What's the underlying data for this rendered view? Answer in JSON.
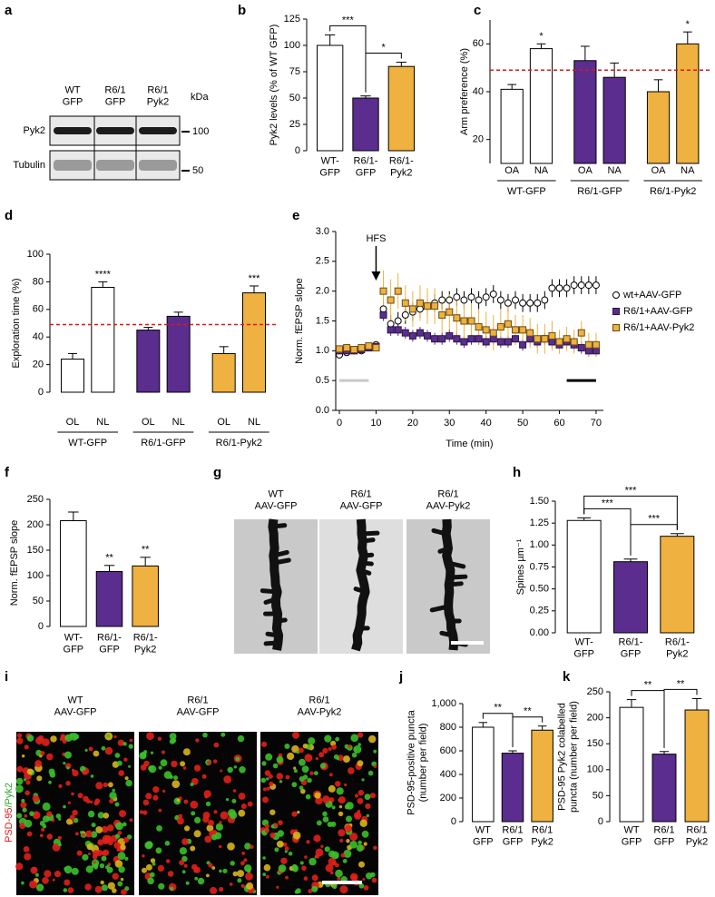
{
  "images": [
    {
      "panel": "a",
      "lane_labels": [
        "WT\nGFP",
        "R6/1\nGFP",
        "R6/1\nPyk2"
      ],
      "unit": "kDa",
      "row_labels": [
        "Pyk2",
        "Tubulin"
      ],
      "markers": [
        100,
        50
      ]
    },
    {
      "panel": "g",
      "labels": [
        "WT\nAAV-GFP",
        "R6/1\nAAV-GFP",
        "R6/1\nAAV-Pyk2"
      ]
    },
    {
      "panel": "i",
      "labels": [
        "WT\nAAV-GFP",
        "R6/1\nAAV-GFP",
        "R6/1\nAAV-Pyk2"
      ],
      "channels": [
        {
          "text": "PSD-95",
          "color": "#e0201b"
        },
        {
          "text": "/Pyk2",
          "color": "#2fa82f"
        }
      ]
    }
  ],
  "chart_data": [
    {
      "type": "bar",
      "panel": "b",
      "ylabel": "Pyk2 levels (% of WT GFP)",
      "categories": [
        "WT-\nGFP",
        "R6/1-\nGFP",
        "R6/1-\nPyk2"
      ],
      "values": [
        100,
        50,
        80
      ],
      "errors": [
        10,
        2,
        4
      ],
      "colors": [
        "#ffffff",
        "#5b2d8e",
        "#efb13f"
      ],
      "ylim": [
        0,
        125
      ],
      "yticks": [
        0,
        25,
        50,
        75,
        100,
        125
      ],
      "annotations": [
        {
          "text": "***",
          "from": 0,
          "to": 1
        },
        {
          "text": "*",
          "from": 1,
          "to": 2
        }
      ]
    },
    {
      "type": "grouped_bar",
      "panel": "c",
      "ylabel": "Arm preference (%)",
      "groups": [
        {
          "name": "WT-GFP",
          "color": "#ffffff",
          "categories": [
            "OA",
            "NA"
          ],
          "values": [
            41,
            58
          ],
          "errors": [
            2,
            2
          ]
        },
        {
          "name": "R6/1-GFP",
          "color": "#5b2d8e",
          "categories": [
            "OA",
            "NA"
          ],
          "values": [
            53,
            46
          ],
          "errors": [
            6,
            6
          ]
        },
        {
          "name": "R6/1-Pyk2",
          "color": "#efb13f",
          "categories": [
            "OA",
            "NA"
          ],
          "values": [
            40,
            60
          ],
          "errors": [
            5,
            5
          ]
        }
      ],
      "reference_line": 49,
      "reference_color": "#d7191c",
      "ylim": [
        10,
        70
      ],
      "yticks": [
        20,
        40,
        60
      ],
      "annotations": [
        {
          "group": 0,
          "index": 1,
          "text": "*"
        },
        {
          "group": 2,
          "index": 1,
          "text": "*"
        }
      ]
    },
    {
      "type": "grouped_bar",
      "panel": "d",
      "ylabel": "Exploration time (%)",
      "groups": [
        {
          "name": "WT-GFP",
          "color": "#ffffff",
          "categories": [
            "OL",
            "NL"
          ],
          "values": [
            24,
            76
          ],
          "errors": [
            4,
            4
          ]
        },
        {
          "name": "R6/1-GFP",
          "color": "#5b2d8e",
          "categories": [
            "OL",
            "NL"
          ],
          "values": [
            45,
            55
          ],
          "errors": [
            2,
            3
          ]
        },
        {
          "name": "R6/1-Pyk2",
          "color": "#efb13f",
          "categories": [
            "OL",
            "NL"
          ],
          "values": [
            28,
            72
          ],
          "errors": [
            5,
            5
          ]
        }
      ],
      "reference_line": 49,
      "reference_color": "#d7191c",
      "ylim": [
        0,
        100
      ],
      "yticks": [
        0,
        20,
        40,
        60,
        80,
        100
      ],
      "annotations": [
        {
          "group": 0,
          "index": 1,
          "text": "****"
        },
        {
          "group": 2,
          "index": 1,
          "text": "***"
        }
      ]
    },
    {
      "type": "line",
      "panel": "e",
      "ylabel": "Norm. fEPSP slope",
      "xlabel": "Time (min)",
      "x": [
        0,
        2,
        4,
        6,
        8,
        10,
        12,
        14,
        16,
        18,
        20,
        22,
        24,
        26,
        28,
        30,
        32,
        34,
        36,
        38,
        40,
        42,
        44,
        46,
        48,
        50,
        52,
        54,
        56,
        58,
        60,
        62,
        64,
        66,
        68,
        70
      ],
      "series": [
        {
          "name": "wt+AAV-GFP",
          "marker": "circle",
          "color": "#ffffff",
          "edge": "#000000",
          "values": [
            0.93,
            0.97,
            1.0,
            1.0,
            1.05,
            1.1,
            1.7,
            1.45,
            1.5,
            1.6,
            1.65,
            1.7,
            1.75,
            1.8,
            1.85,
            1.85,
            1.9,
            1.85,
            1.9,
            1.85,
            1.9,
            1.95,
            1.85,
            1.8,
            1.85,
            1.8,
            1.8,
            1.8,
            1.85,
            2.05,
            2.05,
            2.05,
            2.1,
            2.1,
            2.1,
            2.1
          ],
          "errors": [
            0.04,
            0.04,
            0.04,
            0.04,
            0.05,
            0.05,
            0.15,
            0.15,
            0.15,
            0.15,
            0.15,
            0.15,
            0.15,
            0.15,
            0.15,
            0.15,
            0.15,
            0.15,
            0.15,
            0.15,
            0.15,
            0.15,
            0.15,
            0.15,
            0.15,
            0.15,
            0.15,
            0.15,
            0.15,
            0.15,
            0.15,
            0.15,
            0.15,
            0.15,
            0.15,
            0.15
          ]
        },
        {
          "name": "R6/1+AAV-GFP",
          "marker": "square",
          "color": "#5b2d8e",
          "edge": "#2a1247",
          "values": [
            1.0,
            1.0,
            1.0,
            1.02,
            1.05,
            1.07,
            1.6,
            1.35,
            1.35,
            1.3,
            1.25,
            1.3,
            1.25,
            1.2,
            1.2,
            1.25,
            1.2,
            1.15,
            1.2,
            1.2,
            1.15,
            1.2,
            1.15,
            1.15,
            1.2,
            1.1,
            1.2,
            1.15,
            1.2,
            1.15,
            1.1,
            1.15,
            1.1,
            1.05,
            1.0,
            1.0
          ],
          "errors": [
            0.04,
            0.04,
            0.04,
            0.04,
            0.05,
            0.05,
            0.1,
            0.1,
            0.1,
            0.1,
            0.1,
            0.1,
            0.1,
            0.1,
            0.1,
            0.1,
            0.1,
            0.1,
            0.1,
            0.1,
            0.1,
            0.1,
            0.1,
            0.1,
            0.1,
            0.1,
            0.1,
            0.1,
            0.1,
            0.1,
            0.1,
            0.1,
            0.1,
            0.1,
            0.1,
            0.1
          ]
        },
        {
          "name": "R6/1+AAV-Pyk2",
          "marker": "square",
          "color": "#efb13f",
          "edge": "#6b4a10",
          "values": [
            1.03,
            1.05,
            1.02,
            1.05,
            1.08,
            1.05,
            2.0,
            1.85,
            2.0,
            1.8,
            1.7,
            1.8,
            1.75,
            1.75,
            1.6,
            1.65,
            1.55,
            1.5,
            1.5,
            1.4,
            1.35,
            1.3,
            1.4,
            1.45,
            1.35,
            1.35,
            1.3,
            1.2,
            1.2,
            1.25,
            1.15,
            1.2,
            1.15,
            1.3,
            1.1,
            1.1
          ],
          "errors": [
            0.06,
            0.06,
            0.06,
            0.06,
            0.06,
            0.06,
            0.35,
            0.35,
            0.3,
            0.3,
            0.3,
            0.3,
            0.3,
            0.3,
            0.3,
            0.3,
            0.3,
            0.3,
            0.3,
            0.3,
            0.3,
            0.3,
            0.3,
            0.3,
            0.25,
            0.25,
            0.25,
            0.25,
            0.25,
            0.25,
            0.2,
            0.2,
            0.2,
            0.2,
            0.2,
            0.2
          ]
        }
      ],
      "periods": [
        {
          "from": 0,
          "to": 8,
          "color": "#c8c8c8"
        },
        {
          "from": 62,
          "to": 70,
          "color": "#000000"
        }
      ],
      "period_level": 0.5,
      "annotations": [
        {
          "text": "HFS",
          "x": 10
        }
      ],
      "legend": "right",
      "xlim": [
        -1,
        72
      ],
      "xticks": [
        0,
        10,
        20,
        30,
        40,
        50,
        60,
        70
      ],
      "ylim": [
        0,
        3
      ],
      "yticks": [
        {
          "value": 0,
          "label": "0.0"
        },
        0.5,
        {
          "value": 1,
          "label": "1.0"
        },
        1.5,
        {
          "value": 2,
          "label": "2.0"
        },
        2.5,
        {
          "value": 3,
          "label": "3.0"
        }
      ]
    },
    {
      "type": "bar",
      "panel": "f",
      "ylabel": "Norm. fEPSP slope",
      "categories": [
        "WT-\nGFP",
        "R6/1-\nGFP",
        "R6/1-\nPyk2"
      ],
      "values": [
        208,
        108,
        119
      ],
      "errors": [
        17,
        12,
        17
      ],
      "colors": [
        "#ffffff",
        "#5b2d8e",
        "#efb13f"
      ],
      "ylim": [
        0,
        250
      ],
      "yticks": [
        0,
        50,
        100,
        150,
        200,
        250
      ],
      "annotations": [
        {
          "text": "**",
          "index": 1
        },
        {
          "text": "**",
          "index": 2
        }
      ]
    },
    {
      "type": "bar",
      "panel": "h",
      "ylabel": "Spines µm⁻¹",
      "categories": [
        "WT-\nGFP",
        "R6/1-\nGFP",
        "R6/1-\nPyk2"
      ],
      "values": [
        1.28,
        0.81,
        1.1
      ],
      "errors": [
        0.03,
        0.03,
        0.03
      ],
      "colors": [
        "#ffffff",
        "#5b2d8e",
        "#efb13f"
      ],
      "ylim": [
        0,
        1.5
      ],
      "yticks": [
        {
          "value": 0,
          "label": "0.00"
        },
        {
          "value": 0.25,
          "label": "0.25"
        },
        {
          "value": 0.5,
          "label": "0.50"
        },
        {
          "value": 0.75,
          "label": "0.75"
        },
        {
          "value": 1,
          "label": "1.00"
        },
        {
          "value": 1.25,
          "label": "1.25"
        },
        {
          "value": 1.5,
          "label": "1.50"
        }
      ],
      "annotations": [
        {
          "text": "***",
          "from": 0,
          "to": 1
        },
        {
          "text": "***",
          "from": 1,
          "to": 2
        },
        {
          "text": "***",
          "from": 0,
          "to": 2
        }
      ]
    },
    {
      "type": "bar",
      "panel": "j",
      "ylabel": "PSD-95-positive puncta\n(number per field)",
      "categories": [
        "WT\nGFP",
        "R6/1\nGFP",
        "R6/1\nPyk2"
      ],
      "values": [
        800,
        580,
        775
      ],
      "errors": [
        40,
        20,
        35
      ],
      "colors": [
        "#ffffff",
        "#5b2d8e",
        "#efb13f"
      ],
      "ylim": [
        0,
        1000
      ],
      "yticks": [
        0,
        200,
        400,
        600,
        800,
        {
          "value": 1000,
          "label": "1,000"
        }
      ],
      "annotations": [
        {
          "text": "**",
          "from": 0,
          "to": 1
        },
        {
          "text": "**",
          "from": 1,
          "to": 2
        }
      ]
    },
    {
      "type": "bar",
      "panel": "k",
      "ylabel": "PSD-95 Pyk2 colabelled\npuncta (number per field)",
      "categories": [
        "WT\nGFP",
        "R6/1\nGFP",
        "R6/1\nPyk2"
      ],
      "values": [
        220,
        130,
        215
      ],
      "errors": [
        15,
        5,
        22
      ],
      "colors": [
        "#ffffff",
        "#5b2d8e",
        "#efb13f"
      ],
      "ylim": [
        0,
        250
      ],
      "yticks": [
        0,
        50,
        100,
        150,
        200,
        250
      ],
      "annotations": [
        {
          "text": "**",
          "from": 0,
          "to": 1
        },
        {
          "text": "**",
          "from": 1,
          "to": 2
        }
      ]
    }
  ]
}
